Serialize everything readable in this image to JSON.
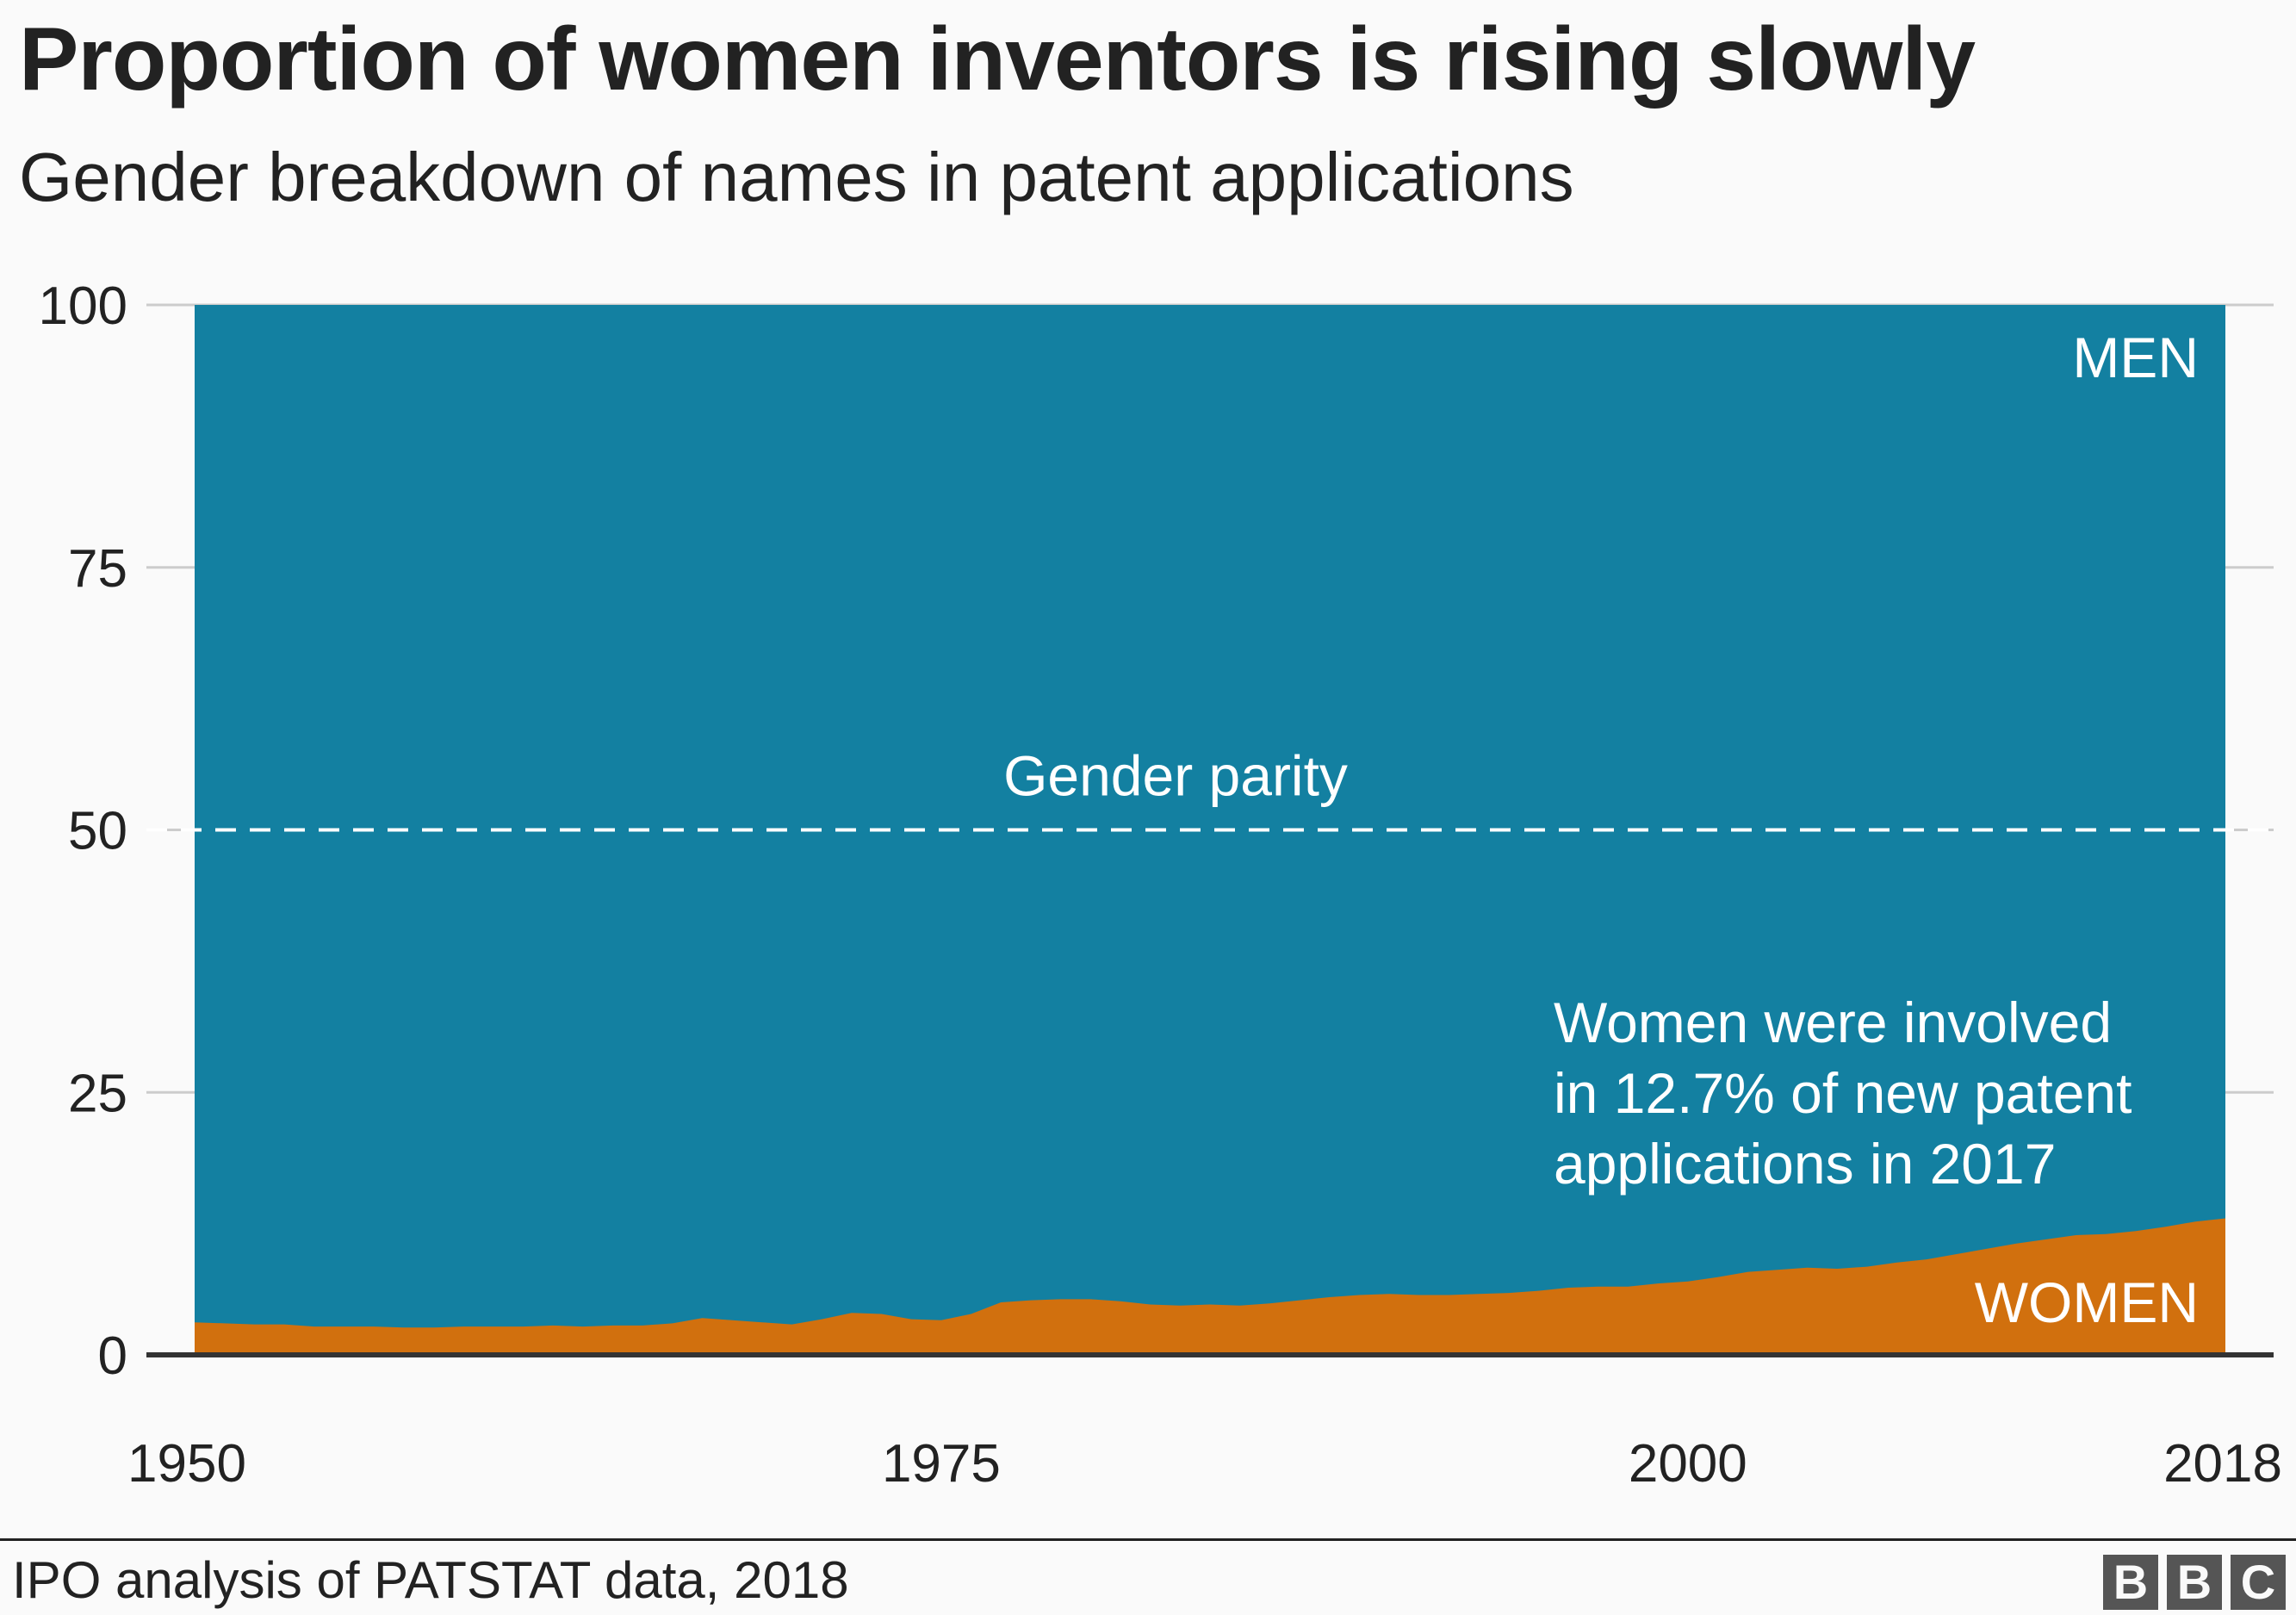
{
  "header": {
    "title": "Proportion of women inventors is rising slowly",
    "subtitle": "Gender breakdown of names in patent applications"
  },
  "footer": {
    "source": "IPO analysis of PATSTAT data, 2018",
    "logo": [
      "B",
      "B",
      "C"
    ]
  },
  "chart_data": {
    "type": "area",
    "stacked": true,
    "percent": true,
    "x": [
      1950,
      1951,
      1952,
      1953,
      1954,
      1955,
      1956,
      1957,
      1958,
      1959,
      1960,
      1961,
      1962,
      1963,
      1964,
      1965,
      1966,
      1967,
      1968,
      1969,
      1970,
      1971,
      1972,
      1973,
      1974,
      1975,
      1976,
      1977,
      1978,
      1979,
      1980,
      1981,
      1982,
      1983,
      1984,
      1985,
      1986,
      1987,
      1988,
      1989,
      1990,
      1991,
      1992,
      1993,
      1994,
      1995,
      1996,
      1997,
      1998,
      1999,
      2000,
      2001,
      2002,
      2003,
      2004,
      2005,
      2006,
      2007,
      2008,
      2009,
      2010,
      2011,
      2012,
      2013,
      2014,
      2015,
      2016,
      2017,
      2018
    ],
    "series": [
      {
        "name": "WOMEN",
        "color": "#d1700e",
        "values": [
          3.1,
          3.0,
          2.9,
          2.9,
          2.7,
          2.7,
          2.7,
          2.6,
          2.6,
          2.7,
          2.7,
          2.7,
          2.8,
          2.7,
          2.8,
          2.8,
          3.0,
          3.5,
          3.3,
          3.1,
          2.9,
          3.4,
          4.0,
          3.9,
          3.4,
          3.3,
          3.9,
          5.0,
          5.2,
          5.3,
          5.3,
          5.1,
          4.8,
          4.7,
          4.8,
          4.7,
          4.9,
          5.2,
          5.5,
          5.7,
          5.8,
          5.7,
          5.7,
          5.8,
          5.9,
          6.1,
          6.4,
          6.5,
          6.5,
          6.8,
          7.0,
          7.4,
          7.9,
          8.1,
          8.3,
          8.2,
          8.4,
          8.8,
          9.1,
          9.6,
          10.1,
          10.6,
          11.0,
          11.4,
          11.5,
          11.8,
          12.2,
          12.7,
          13.0
        ]
      },
      {
        "name": "MEN",
        "color": "#1380a1"
      }
    ],
    "xlim": [
      1950,
      2018
    ],
    "ylim": [
      0,
      100
    ],
    "xticks": [
      "1950",
      "1975",
      "2000",
      "2018"
    ],
    "yticks": [
      "0",
      "25",
      "50",
      "75",
      "100"
    ],
    "grid": true,
    "reference_line": {
      "value": 50,
      "label": "Gender parity",
      "style": "dashed"
    },
    "annotation": [
      "Women were involved",
      "in 12.7% of new patent",
      "applications in 2017"
    ],
    "labels": {
      "men": "MEN",
      "women": "WOMEN"
    }
  }
}
